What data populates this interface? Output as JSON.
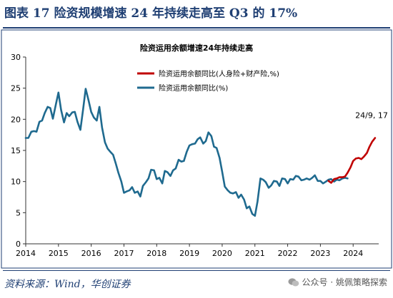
{
  "figure": {
    "title": "图表 17   险资规模增速 24 年持续走高至 Q3 的 17%",
    "source": "资料来源：Wind，华创证券",
    "watermark": "公众号 · 姚佩策略探索",
    "watermark_icon": "wechat-icon"
  },
  "chart_data": {
    "type": "line",
    "title": "险资运用余额增速24年持续走高",
    "xlabel": "",
    "ylabel": "",
    "xlim": [
      2014,
      2024.65
    ],
    "ylim": [
      0,
      30
    ],
    "x_ticks": [
      "2014",
      "2015",
      "2016",
      "2017",
      "2018",
      "2019",
      "2020",
      "2021",
      "2022",
      "2023",
      "2024"
    ],
    "y_ticks": [
      "0",
      "5",
      "10",
      "15",
      "20",
      "25",
      "30"
    ],
    "grid": false,
    "legend_position": "top-center",
    "annotation": {
      "text": "24/9, 17",
      "x": 2024.7,
      "y": 17
    },
    "series": [
      {
        "name": "险资运用余额同比(人身险+财产险,%)",
        "color": "#c00000",
        "x": [
          2023.25,
          2023.33,
          2023.42,
          2023.5,
          2023.58,
          2023.67,
          2023.75,
          2023.83,
          2023.92,
          2024.0,
          2024.08,
          2024.17,
          2024.25,
          2024.33,
          2024.42,
          2024.5,
          2024.58,
          2024.67
        ],
        "y": [
          10.1,
          9.8,
          10.4,
          10.5,
          10.7,
          10.7,
          10.8,
          11.4,
          12.3,
          13.3,
          13.7,
          13.8,
          13.6,
          14.0,
          14.6,
          15.6,
          16.4,
          17.0
        ]
      },
      {
        "name": "险资运用余额同比(%)",
        "color": "#1f6a8f",
        "x": [
          2014.0,
          2014.08,
          2014.17,
          2014.25,
          2014.33,
          2014.42,
          2014.5,
          2014.58,
          2014.67,
          2014.75,
          2014.83,
          2014.92,
          2015.0,
          2015.08,
          2015.17,
          2015.25,
          2015.33,
          2015.42,
          2015.5,
          2015.58,
          2015.67,
          2015.75,
          2015.83,
          2015.92,
          2016.0,
          2016.08,
          2016.17,
          2016.25,
          2016.33,
          2016.42,
          2016.5,
          2016.58,
          2016.67,
          2016.75,
          2016.83,
          2016.92,
          2017.0,
          2017.08,
          2017.17,
          2017.25,
          2017.33,
          2017.42,
          2017.5,
          2017.58,
          2017.67,
          2017.75,
          2017.83,
          2017.92,
          2018.0,
          2018.08,
          2018.17,
          2018.25,
          2018.33,
          2018.42,
          2018.5,
          2018.58,
          2018.67,
          2018.75,
          2018.83,
          2018.92,
          2019.0,
          2019.08,
          2019.17,
          2019.25,
          2019.33,
          2019.42,
          2019.5,
          2019.58,
          2019.67,
          2019.75,
          2019.83,
          2019.92,
          2020.0,
          2020.08,
          2020.17,
          2020.25,
          2020.33,
          2020.42,
          2020.5,
          2020.58,
          2020.67,
          2020.75,
          2020.83,
          2020.92,
          2021.0,
          2021.08,
          2021.17,
          2021.25,
          2021.33,
          2021.42,
          2021.5,
          2021.58,
          2021.67,
          2021.75,
          2021.83,
          2021.92,
          2022.0,
          2022.08,
          2022.17,
          2022.25,
          2022.33,
          2022.42,
          2022.5,
          2022.58,
          2022.67,
          2022.75,
          2022.83,
          2022.92,
          2023.0,
          2023.08,
          2023.17,
          2023.25,
          2023.33,
          2023.42,
          2023.5,
          2023.58,
          2023.67,
          2023.75,
          2023.83
        ],
        "y": [
          17.0,
          17.0,
          18.0,
          18.1,
          18.0,
          19.6,
          19.8,
          21.0,
          22.0,
          21.8,
          20.1,
          22.4,
          24.3,
          21.5,
          19.5,
          21.0,
          20.5,
          21.1,
          21.2,
          19.6,
          18.3,
          21.5,
          24.9,
          23.0,
          21.2,
          20.3,
          19.8,
          22.0,
          18.7,
          16.3,
          15.3,
          14.8,
          14.3,
          12.9,
          11.4,
          10.0,
          8.2,
          8.4,
          8.6,
          9.1,
          8.2,
          8.4,
          7.6,
          9.3,
          9.9,
          10.5,
          11.9,
          11.8,
          10.4,
          10.6,
          9.7,
          11.7,
          11.5,
          10.9,
          11.8,
          12.1,
          13.5,
          13.2,
          13.3,
          14.8,
          15.8,
          16.0,
          16.1,
          16.8,
          17.1,
          16.1,
          16.5,
          17.9,
          17.3,
          15.6,
          15.4,
          13.8,
          11.6,
          9.2,
          8.6,
          8.2,
          8.1,
          8.3,
          7.4,
          7.9,
          7.1,
          5.7,
          6.0,
          4.8,
          4.5,
          6.8,
          10.5,
          10.3,
          9.9,
          9.0,
          9.4,
          10.1,
          10.0,
          9.3,
          10.5,
          10.4,
          9.7,
          10.4,
          10.3,
          10.9,
          10.8,
          10.2,
          10.3,
          10.5,
          10.3,
          10.6,
          11.0,
          10.1,
          10.1,
          9.7,
          10.0,
          10.3,
          10.4,
          10.0,
          10.3,
          10.2,
          10.5,
          10.6,
          10.5
        ]
      }
    ]
  }
}
